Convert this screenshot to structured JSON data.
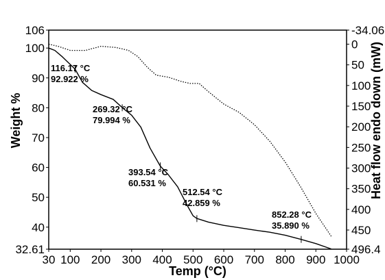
{
  "chart_data": {
    "type": "line",
    "xlabel": "Temp (°C)",
    "ylabel_left": "Weight %",
    "ylabel_right": "Heat flow endo down (mW)",
    "xlim": [
      30,
      1000
    ],
    "ylim_left": [
      32.61,
      106
    ],
    "ylim_right": [
      -34.06,
      496.4
    ],
    "right_axis_inverted": true,
    "x_ticks": [
      "30",
      "100",
      "200",
      "300",
      "400",
      "500",
      "600",
      "700",
      "800",
      "900",
      "1000"
    ],
    "x_tick_values": [
      30,
      100,
      200,
      300,
      400,
      500,
      600,
      700,
      800,
      900,
      1000
    ],
    "y_left_ticks": [
      "32.61",
      "40",
      "50",
      "60",
      "70",
      "80",
      "90",
      "100",
      "106"
    ],
    "y_left_tick_values": [
      32.61,
      40,
      50,
      60,
      70,
      80,
      90,
      100,
      106
    ],
    "y_right_ticks": [
      "-34.06",
      "0",
      "50",
      "100",
      "150",
      "200",
      "250",
      "300",
      "350",
      "400",
      "450",
      "496.4"
    ],
    "y_right_tick_values": [
      -34.06,
      0,
      50,
      100,
      150,
      200,
      250,
      300,
      350,
      400,
      450,
      496.4
    ],
    "series": [
      {
        "axis": "left",
        "style": "solid",
        "x": [
          30,
          50,
          75,
          100,
          116,
          140,
          170,
          200,
          240,
          270,
          300,
          330,
          360,
          393,
          420,
          450,
          480,
          500,
          512,
          550,
          600,
          650,
          700,
          750,
          800,
          852,
          900,
          950
        ],
        "y": [
          100,
          99.2,
          97,
          94.5,
          92.9,
          88.5,
          85.8,
          84.4,
          82.8,
          80.0,
          77.5,
          73.5,
          66.5,
          60.5,
          57.5,
          53.5,
          47.5,
          43.8,
          42.9,
          41.7,
          40.6,
          39.8,
          39.0,
          38.3,
          37.3,
          35.9,
          34.5,
          32.7
        ]
      },
      {
        "axis": "right",
        "style": "dotted",
        "x": [
          30,
          60,
          100,
          150,
          200,
          250,
          290,
          320,
          350,
          380,
          420,
          460,
          490,
          520,
          550,
          600,
          650,
          700,
          750,
          800,
          850,
          900,
          950
        ],
        "y": [
          0,
          5,
          15,
          15,
          5,
          8,
          15,
          30,
          55,
          75,
          80,
          90,
          95,
          95,
          115,
          145,
          165,
          195,
          235,
          285,
          345,
          410,
          465
        ]
      }
    ],
    "annotations": [
      {
        "x": 116.17,
        "y": 92.922,
        "temp": "116.17 °C",
        "value": "92.922 %"
      },
      {
        "x": 269.32,
        "y": 79.994,
        "temp": "269.32 °C",
        "value": "79.994 %"
      },
      {
        "x": 393.54,
        "y": 60.531,
        "temp": "393.54 °C",
        "value": "60.531 %"
      },
      {
        "x": 512.54,
        "y": 42.859,
        "temp": "512.54 °C",
        "value": "42.859 %"
      },
      {
        "x": 852.28,
        "y": 35.89,
        "temp": "852.28 °C",
        "value": "35.890 %"
      }
    ]
  }
}
